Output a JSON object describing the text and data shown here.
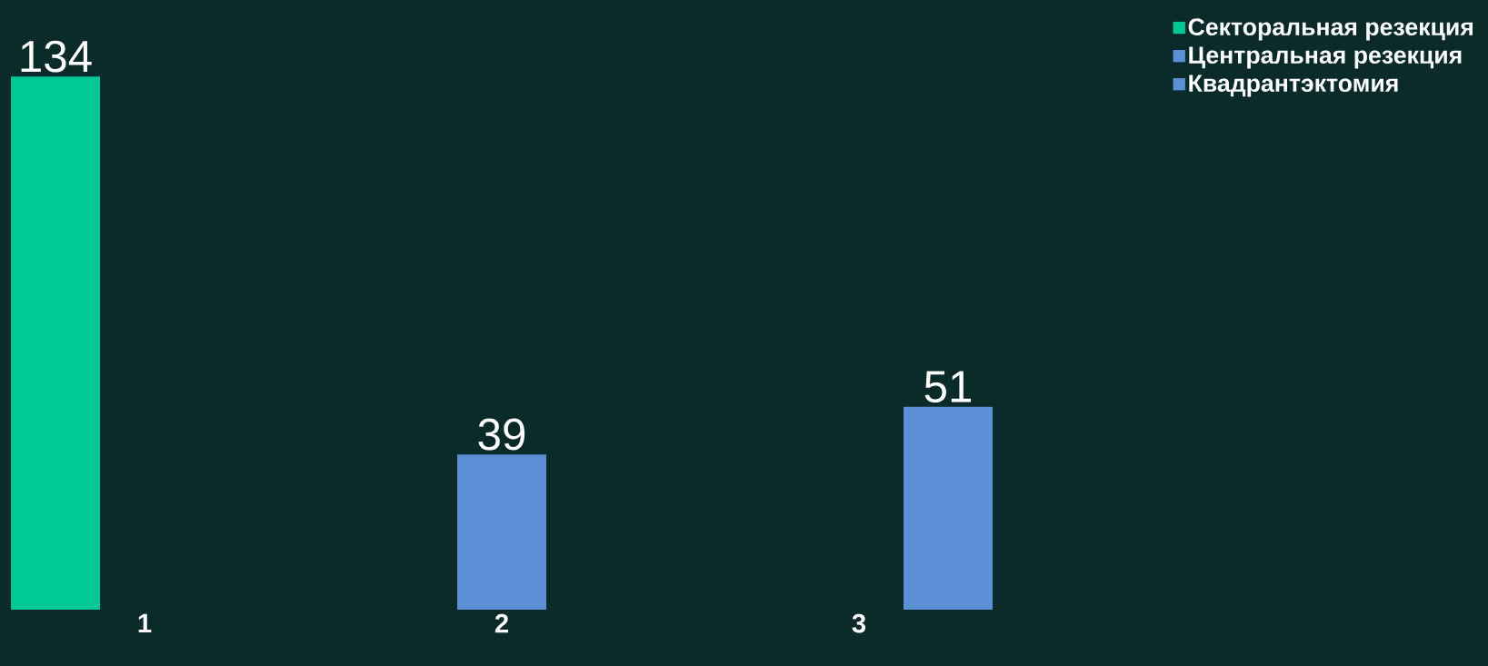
{
  "chart_data": {
    "type": "bar",
    "categories": [
      "1",
      "2",
      "3"
    ],
    "series": [
      {
        "name": "Секторальная резекция",
        "color": "#00c896",
        "values": [
          134,
          null,
          null
        ]
      },
      {
        "name": "Центральная резекция",
        "color": "#5b8fd6",
        "values": [
          null,
          39,
          null
        ]
      },
      {
        "name": "Квадрантэктомия",
        "color": "#5b8fd6",
        "values": [
          null,
          null,
          51
        ]
      }
    ],
    "data_labels": true,
    "legend": "top right"
  }
}
